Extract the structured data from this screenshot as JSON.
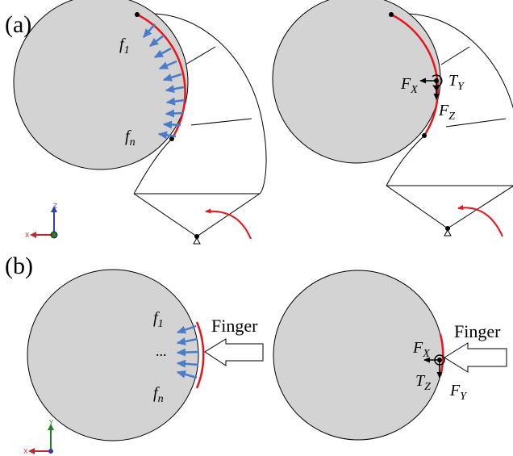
{
  "panels": {
    "a": {
      "label": "(a)"
    },
    "b": {
      "label": "(b)"
    }
  },
  "panel_a_left": {
    "f_first": {
      "base": "f",
      "sub": "1"
    },
    "f_last": {
      "base": "f",
      "sub": "n"
    }
  },
  "panel_a_right": {
    "fx": {
      "base": "F",
      "sub": "X"
    },
    "ty": {
      "base": "T",
      "sub": "Y"
    },
    "fz": {
      "base": "F",
      "sub": "Z"
    }
  },
  "panel_b_left": {
    "f_first": {
      "base": "f",
      "sub": "1"
    },
    "ellipsis": "...",
    "f_last": {
      "base": "f",
      "sub": "n"
    },
    "finger": "Finger"
  },
  "panel_b_right": {
    "fx": {
      "base": "F",
      "sub": "X"
    },
    "tz": {
      "base": "T",
      "sub": "Z"
    },
    "fy": {
      "base": "F",
      "sub": "Y"
    },
    "finger": "Finger"
  },
  "triads": {
    "a": {
      "up": "Z",
      "left": "X"
    },
    "b": {
      "up": "Y",
      "left": "X"
    }
  },
  "colors": {
    "object_fill": "#d3d3d3",
    "contact": "#e8141b",
    "force_arrow": "#4a7cc9",
    "axis_red": "#c0282d",
    "axis_blue": "#2f3fb0",
    "axis_green": "#2a7a2a"
  }
}
